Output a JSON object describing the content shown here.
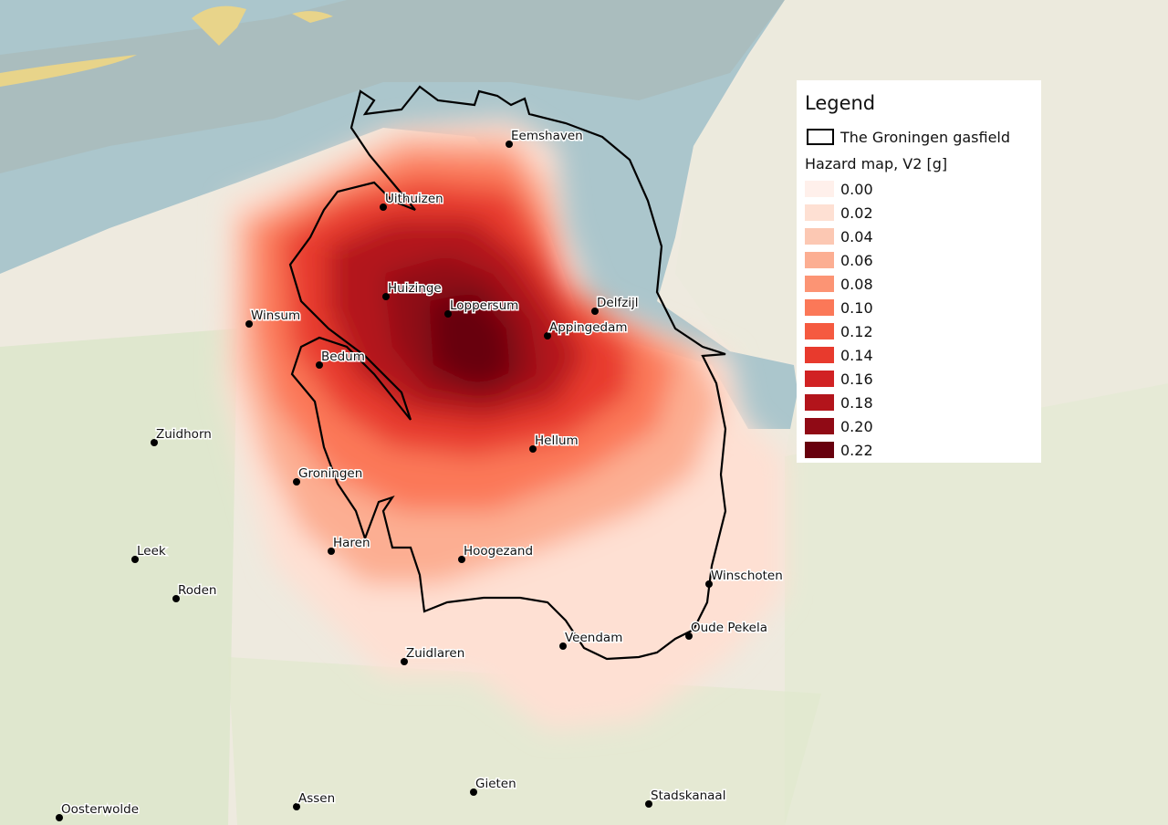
{
  "legend": {
    "title": "Legend",
    "outline_label": "The Groningen gasfield",
    "scale_title": "Hazard map, V2 [g]",
    "scale": [
      {
        "label": "0.00",
        "color": "#fff0eb"
      },
      {
        "label": "0.02",
        "color": "#fee0d3"
      },
      {
        "label": "0.04",
        "color": "#fcc8b3"
      },
      {
        "label": "0.06",
        "color": "#fcae92"
      },
      {
        "label": "0.08",
        "color": "#fc9474"
      },
      {
        "label": "0.10",
        "color": "#fb7858"
      },
      {
        "label": "0.12",
        "color": "#f55a40"
      },
      {
        "label": "0.14",
        "color": "#e83a2d"
      },
      {
        "label": "0.16",
        "color": "#d12223"
      },
      {
        "label": "0.18",
        "color": "#b3141b"
      },
      {
        "label": "0.20",
        "color": "#900a15"
      },
      {
        "label": "0.22",
        "color": "#67000d"
      }
    ]
  },
  "places": [
    "Eemshaven",
    "Uithuizen",
    "Huizinge",
    "Loppersum",
    "Delfzijl",
    "Appingedam",
    "Winsum",
    "Bedum",
    "Zuidhorn",
    "Hellum",
    "Groningen",
    "Haren",
    "Hoogezand",
    "Leek",
    "Roden",
    "Winschoten",
    "Oude Pekela",
    "Veendam",
    "Zuidlaren",
    "Gieten",
    "Assen",
    "Stadskanaal",
    "Oosterwolde"
  ]
}
